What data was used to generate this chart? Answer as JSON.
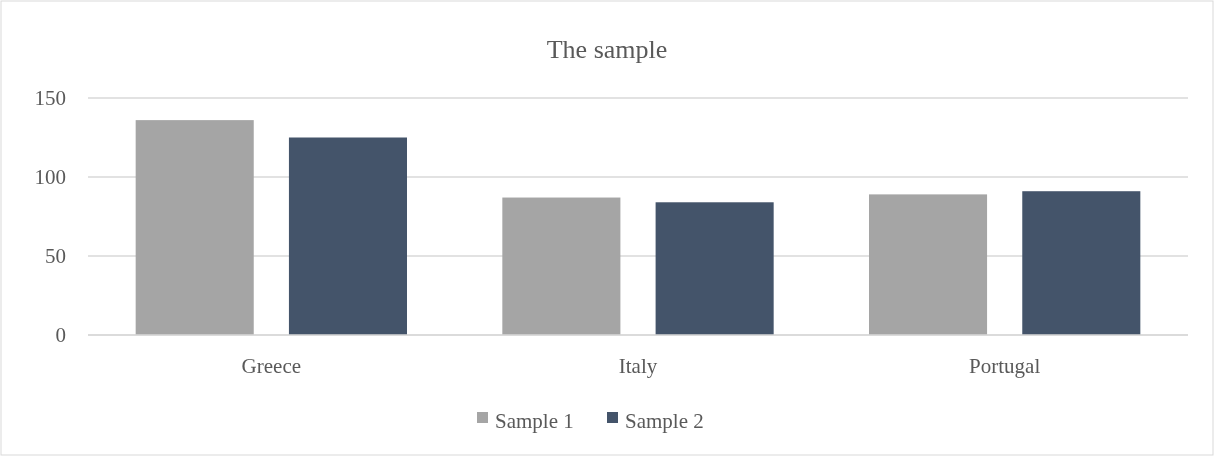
{
  "chart_data": {
    "type": "bar",
    "title": "The sample",
    "categories": [
      "Greece",
      "Italy",
      "Portugal"
    ],
    "series": [
      {
        "name": "Sample 1",
        "color": "#a5a5a5",
        "values": [
          136,
          87,
          89
        ]
      },
      {
        "name": "Sample 2",
        "color": "#44546a",
        "values": [
          125,
          84,
          91
        ]
      }
    ],
    "ylim": [
      0,
      150
    ],
    "yticks": [
      0,
      50,
      100,
      150
    ],
    "grid": "y",
    "legend": "bottom"
  }
}
